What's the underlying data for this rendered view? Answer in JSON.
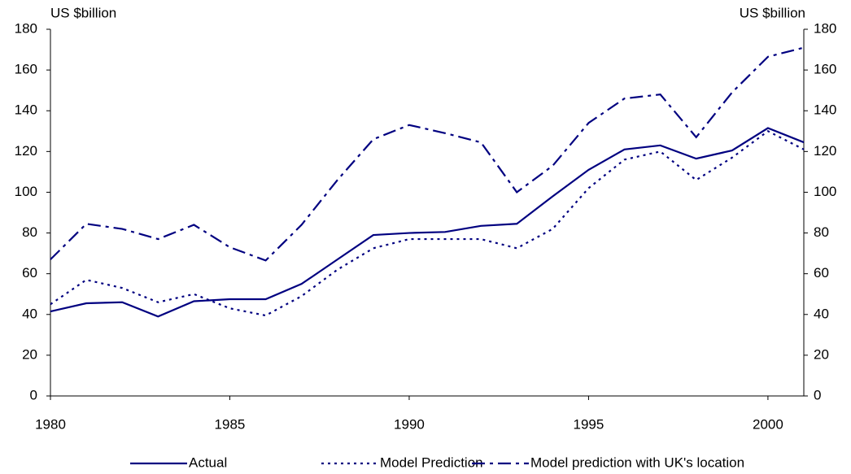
{
  "chart_data": {
    "type": "line",
    "y_label": "US $billion",
    "y2_label": "US $billion",
    "x": [
      1980,
      1981,
      1982,
      1983,
      1984,
      1985,
      1986,
      1987,
      1988,
      1989,
      1990,
      1991,
      1992,
      1993,
      1994,
      1995,
      1996,
      1997,
      1998,
      1999,
      2000,
      2001
    ],
    "xlim": [
      1980,
      2001
    ],
    "xticks": [
      1980,
      1985,
      1990,
      1995,
      2000
    ],
    "ylim": [
      0,
      180
    ],
    "yticks": [
      0,
      20,
      40,
      60,
      80,
      100,
      120,
      140,
      160,
      180
    ],
    "y2lim": [
      0,
      180
    ],
    "y2ticks": [
      0,
      20,
      40,
      60,
      80,
      100,
      120,
      140,
      160,
      180
    ],
    "legend": "bottom",
    "series": [
      {
        "name": "Actual",
        "color": "#000080",
        "dash": "solid",
        "values": [
          41.5,
          45.5,
          46,
          39,
          46.5,
          47.5,
          47.5,
          55,
          67,
          79,
          80,
          80.5,
          83.5,
          84.5,
          98,
          111,
          121,
          123,
          116.5,
          120.5,
          131.5,
          124.5
        ]
      },
      {
        "name": "Model Prediction",
        "color": "#000080",
        "dash": "dotted",
        "values": [
          45,
          57,
          53,
          46,
          50,
          43,
          39.5,
          49,
          62,
          72.5,
          77,
          77,
          77,
          72.5,
          82,
          102,
          116,
          120,
          106,
          117,
          130,
          121
        ]
      },
      {
        "name": "Model prediction with UK's location",
        "color": "#000080",
        "dash": "dashdot",
        "values": [
          67,
          84.5,
          82,
          77,
          84,
          73,
          66.5,
          84,
          106,
          126,
          133,
          129,
          124.5,
          100,
          113,
          134,
          146,
          148,
          127,
          149,
          166.5,
          171
        ]
      }
    ]
  }
}
